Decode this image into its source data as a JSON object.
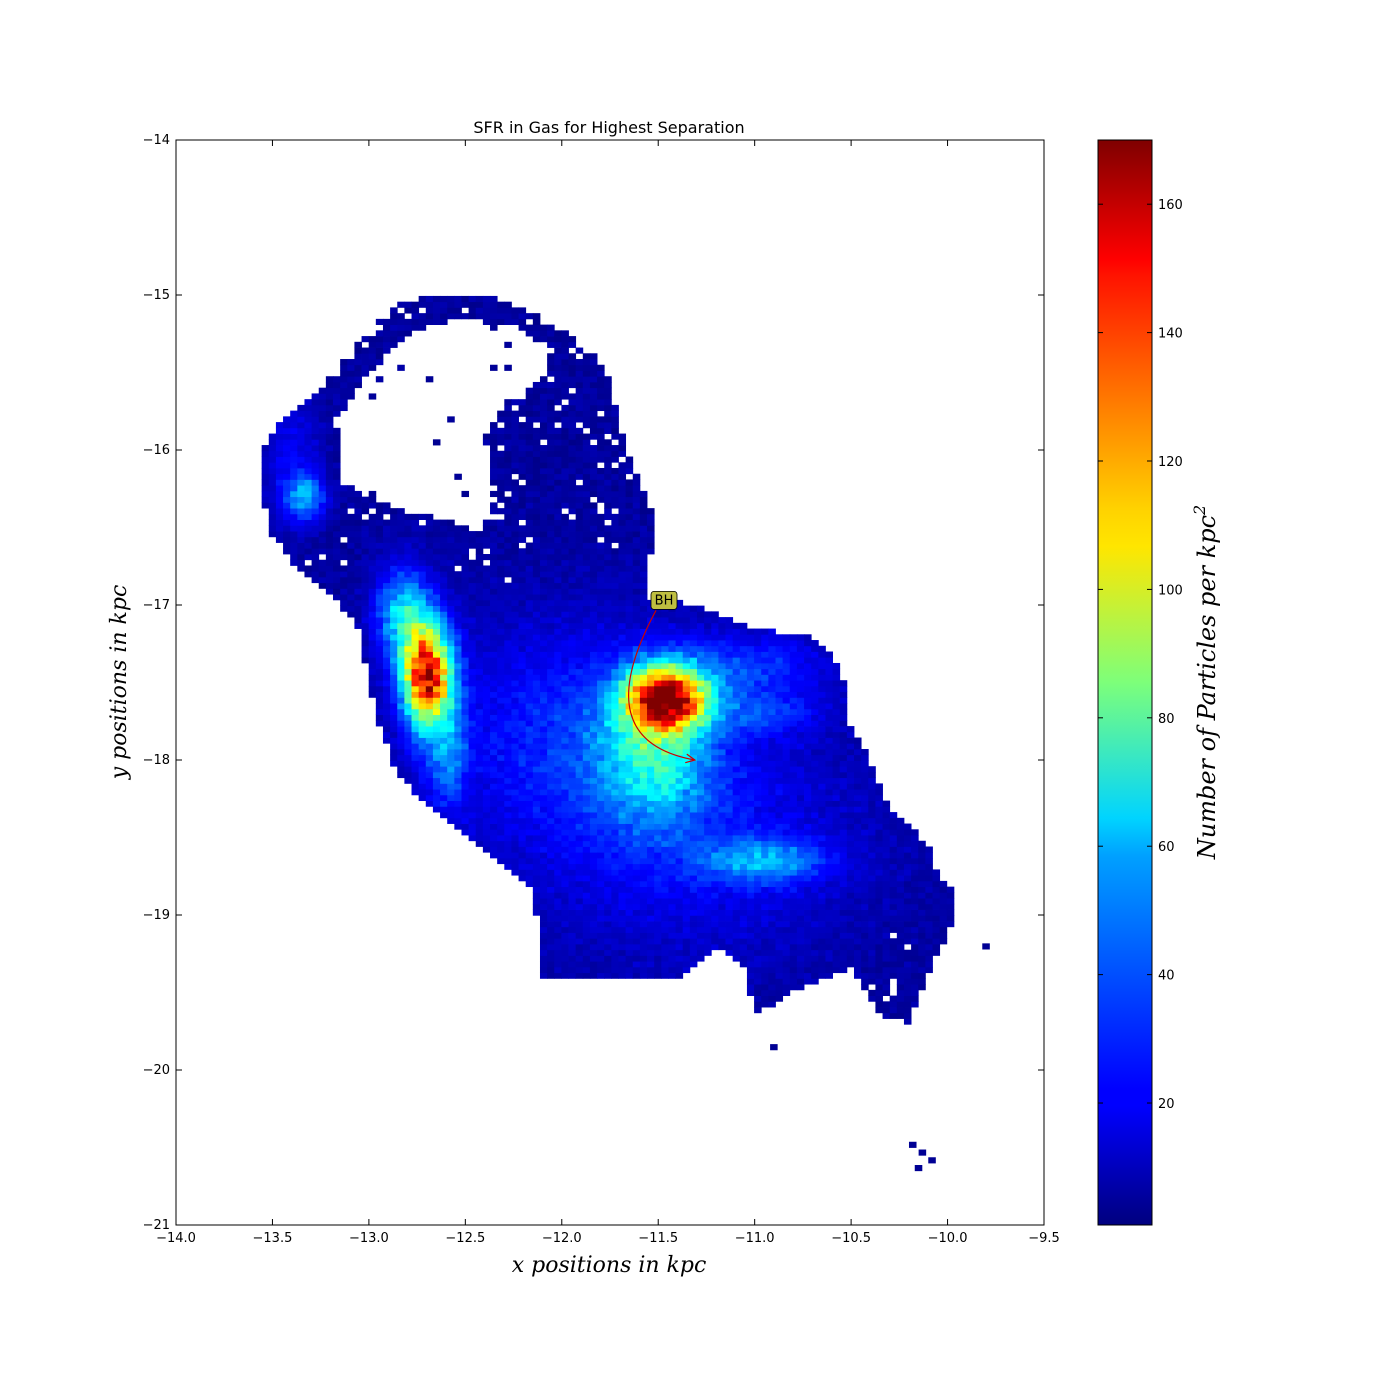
{
  "chart_data": {
    "type": "heatmap",
    "title": "SFR in Gas for Highest Separation",
    "xlabel": "x positions in kpc",
    "ylabel": "y positions in kpc",
    "xlim": [
      -14.0,
      -9.5
    ],
    "ylim": [
      -21,
      -14
    ],
    "xticks": [
      "−14.0",
      "−13.5",
      "−13.0",
      "−12.5",
      "−12.0",
      "−11.5",
      "−11.0",
      "−10.5",
      "−10.0",
      "−9.5"
    ],
    "yticks": [
      "−14",
      "−15",
      "−16",
      "−17",
      "−18",
      "−19",
      "−20",
      "−21"
    ],
    "colorbar": {
      "label": "Number of Particles per kpc",
      "label_superscript": "2",
      "range": [
        1,
        170
      ],
      "ticks": [
        "20",
        "40",
        "60",
        "80",
        "100",
        "120",
        "140",
        "160"
      ],
      "colormap": "jet"
    },
    "annotation": {
      "text": "BH",
      "text_xy": [
        -11.47,
        -16.97
      ],
      "arrow_end_xy": [
        -11.31,
        -18.0
      ],
      "box_color": "#bfbf40",
      "arrow_color": "#cc0000"
    },
    "bin_size_kpc": 0.037,
    "density_components": [
      {
        "center": [
          -12.7,
          -17.45
        ],
        "sigma": [
          0.09,
          0.22
        ],
        "peak": 145
      },
      {
        "center": [
          -11.46,
          -17.6
        ],
        "sigma": [
          0.14,
          0.14
        ],
        "peak": 150
      },
      {
        "center": [
          -12.82,
          -17.05
        ],
        "sigma": [
          0.1,
          0.2
        ],
        "peak": 50
      },
      {
        "center": [
          -12.6,
          -17.95
        ],
        "sigma": [
          0.08,
          0.25
        ],
        "peak": 30
      },
      {
        "center": [
          -13.33,
          -16.3
        ],
        "sigma": [
          0.07,
          0.1
        ],
        "peak": 40
      },
      {
        "center": [
          -11.52,
          -17.95
        ],
        "sigma": [
          0.2,
          0.3
        ],
        "peak": 45
      },
      {
        "center": [
          -11.05,
          -17.4
        ],
        "sigma": [
          0.3,
          0.15
        ],
        "peak": 22
      },
      {
        "center": [
          -10.95,
          -17.7
        ],
        "sigma": [
          0.2,
          0.1
        ],
        "peak": 18
      },
      {
        "center": [
          -10.95,
          -18.65
        ],
        "sigma": [
          0.22,
          0.1
        ],
        "peak": 35
      },
      {
        "center": [
          -11.95,
          -17.8
        ],
        "sigma": [
          0.5,
          0.5
        ],
        "peak": 20
      },
      {
        "center": [
          -11.3,
          -18.5
        ],
        "sigma": [
          0.6,
          0.55
        ],
        "peak": 16
      },
      {
        "center": [
          -13.4,
          -16.05
        ],
        "sigma": [
          0.1,
          0.3
        ],
        "peak": 15
      }
    ]
  }
}
